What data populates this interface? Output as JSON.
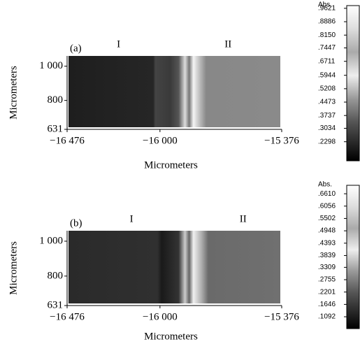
{
  "chart_data": [
    {
      "type": "heatmap",
      "panel_label": "(a)",
      "region_labels": [
        "I",
        "II"
      ],
      "xlabel": "Micrometers",
      "ylabel": "Micrometers",
      "xlim": [
        -16476,
        -15376
      ],
      "xticks": [
        {
          "value": -16476,
          "label": "−16 476"
        },
        {
          "value": -16000,
          "label": "−16 000"
        },
        {
          "value": -15376,
          "label": "−15 376"
        }
      ],
      "ylim": [
        631,
        1060
      ],
      "yticks": [
        631,
        800,
        {
          "value": 1000,
          "label": "1 000"
        }
      ],
      "colorbar_title": "Abs.",
      "colorbar_lim": [
        0.125,
        0.977
      ],
      "colorbar_ticks": [
        {
          "value": 0.9621,
          "label": ".9621"
        },
        {
          "value": 0.8886,
          "label": ".8886"
        },
        {
          "value": 0.815,
          "label": ".8150"
        },
        {
          "value": 0.7447,
          "label": ".7447"
        },
        {
          "value": 0.6711,
          "label": ".6711"
        },
        {
          "value": 0.5944,
          "label": ".5944"
        },
        {
          "value": 0.5208,
          "label": ".5208"
        },
        {
          "value": 0.4473,
          "label": ".4473"
        },
        {
          "value": 0.3737,
          "label": ".3737"
        },
        {
          "value": 0.3034,
          "label": ".3034"
        },
        {
          "value": 0.2298,
          "label": ".2298"
        }
      ]
    },
    {
      "type": "heatmap",
      "panel_label": "(b)",
      "region_labels": [
        "I",
        "II"
      ],
      "xlabel": "Micrometers",
      "ylabel": "Micrometers",
      "xlim": [
        -16476,
        -15376
      ],
      "xticks": [
        {
          "value": -16476,
          "label": "−16 476"
        },
        {
          "value": -16000,
          "label": "−16 000"
        },
        {
          "value": -15376,
          "label": "−15 376"
        }
      ],
      "ylim": [
        631,
        1060
      ],
      "yticks": [
        631,
        800,
        {
          "value": 1000,
          "label": "1 000"
        }
      ],
      "colorbar_title": "Abs.",
      "colorbar_lim": [
        0.056,
        0.699
      ],
      "colorbar_ticks": [
        {
          "value": 0.661,
          "label": ".6610"
        },
        {
          "value": 0.6056,
          "label": ".6056"
        },
        {
          "value": 0.5502,
          "label": ".5502"
        },
        {
          "value": 0.4948,
          "label": ".4948"
        },
        {
          "value": 0.4393,
          "label": ".4393"
        },
        {
          "value": 0.3839,
          "label": ".3839"
        },
        {
          "value": 0.3309,
          "label": ".3309"
        },
        {
          "value": 0.2755,
          "label": ".2755"
        },
        {
          "value": 0.2201,
          "label": ".2201"
        },
        {
          "value": 0.1646,
          "label": ".1646"
        },
        {
          "value": 0.1092,
          "label": ".1092"
        }
      ]
    }
  ]
}
